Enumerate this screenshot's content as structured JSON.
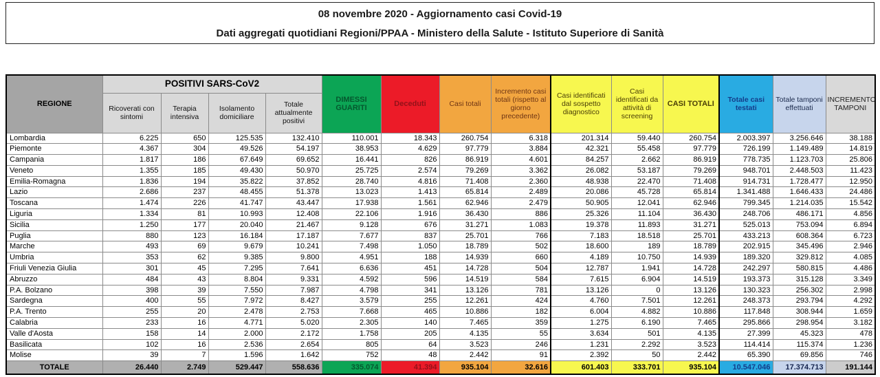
{
  "banner": {
    "line1": "08 novembre 2020 - Aggiornamento casi Covid-19",
    "line2": "Dati aggregati quotidiani Regioni/PPAA - Ministero della Salute - Istituto Superiore di Sanità"
  },
  "colors": {
    "green": "#0ca555",
    "green_text": "#05582e",
    "red": "#ec1b28",
    "red_text": "#931119",
    "orange": "#f2a640",
    "orange_text": "#6d3414",
    "yellow": "#f7f74f",
    "yellow_text": "#4a3e06",
    "cyan": "#29abe2",
    "cyan_text": "#143d8a",
    "lavender": "#c7d5ec",
    "lavender_text": "#14234d",
    "gray_dark": "#a5a5a5",
    "gray_light": "#d9d9d9",
    "total_gray": "#b0b0b0",
    "total_gray_right": "#cccccc"
  },
  "table": {
    "region_header": "REGIONE",
    "group_header": "POSITIVI SARS-CoV2",
    "sub_headers": [
      "Ricoverati con sintomi",
      "Terapia intensiva",
      "Isolamento domiciliare",
      "Totale attualmente positivi"
    ],
    "col_headers": {
      "dimessi": "DIMESSI GUARITI",
      "deceduti": "Deceduti",
      "casi_totali": "Casi totali",
      "incremento_casi": "Incremento casi totali (rispetto al giorno precedente)",
      "sospetto": "Casi identificati dal sospetto diagnostico",
      "screening": "Casi identificati da attività di screening",
      "casi_totali_caps": "CASI TOTALI",
      "testati": "Totale casi testati",
      "tamponi": "Totale tamponi effettuati",
      "incremento_tamponi": "INCREMENTO TAMPONI"
    },
    "rows": [
      {
        "region": "Lombardia",
        "values": [
          "6.225",
          "650",
          "125.535",
          "132.410",
          "110.001",
          "18.343",
          "260.754",
          "6.318",
          "201.314",
          "59.440",
          "260.754",
          "2.003.397",
          "3.256.646",
          "38.188"
        ]
      },
      {
        "region": "Piemonte",
        "values": [
          "4.367",
          "304",
          "49.526",
          "54.197",
          "38.953",
          "4.629",
          "97.779",
          "3.884",
          "42.321",
          "55.458",
          "97.779",
          "726.199",
          "1.149.489",
          "14.819"
        ]
      },
      {
        "region": "Campania",
        "values": [
          "1.817",
          "186",
          "67.649",
          "69.652",
          "16.441",
          "826",
          "86.919",
          "4.601",
          "84.257",
          "2.662",
          "86.919",
          "778.735",
          "1.123.703",
          "25.806"
        ]
      },
      {
        "region": "Veneto",
        "values": [
          "1.355",
          "185",
          "49.430",
          "50.970",
          "25.725",
          "2.574",
          "79.269",
          "3.362",
          "26.082",
          "53.187",
          "79.269",
          "948.701",
          "2.448.503",
          "11.423"
        ]
      },
      {
        "region": "Emilia-Romagna",
        "values": [
          "1.836",
          "194",
          "35.822",
          "37.852",
          "28.740",
          "4.816",
          "71.408",
          "2.360",
          "48.938",
          "22.470",
          "71.408",
          "914.731",
          "1.728.477",
          "12.950"
        ]
      },
      {
        "region": "Lazio",
        "values": [
          "2.686",
          "237",
          "48.455",
          "51.378",
          "13.023",
          "1.413",
          "65.814",
          "2.489",
          "20.086",
          "45.728",
          "65.814",
          "1.341.488",
          "1.646.433",
          "24.486"
        ]
      },
      {
        "region": "Toscana",
        "values": [
          "1.474",
          "226",
          "41.747",
          "43.447",
          "17.938",
          "1.561",
          "62.946",
          "2.479",
          "50.905",
          "12.041",
          "62.946",
          "799.345",
          "1.214.035",
          "15.542"
        ]
      },
      {
        "region": "Liguria",
        "values": [
          "1.334",
          "81",
          "10.993",
          "12.408",
          "22.106",
          "1.916",
          "36.430",
          "886",
          "25.326",
          "11.104",
          "36.430",
          "248.706",
          "486.171",
          "4.856"
        ]
      },
      {
        "region": "Sicilia",
        "values": [
          "1.250",
          "177",
          "20.040",
          "21.467",
          "9.128",
          "676",
          "31.271",
          "1.083",
          "19.378",
          "11.893",
          "31.271",
          "525.013",
          "753.094",
          "6.894"
        ]
      },
      {
        "region": "Puglia",
        "values": [
          "880",
          "123",
          "16.184",
          "17.187",
          "7.677",
          "837",
          "25.701",
          "766",
          "7.183",
          "18.518",
          "25.701",
          "433.213",
          "608.364",
          "6.723"
        ]
      },
      {
        "region": "Marche",
        "values": [
          "493",
          "69",
          "9.679",
          "10.241",
          "7.498",
          "1.050",
          "18.789",
          "502",
          "18.600",
          "189",
          "18.789",
          "202.915",
          "345.496",
          "2.946"
        ]
      },
      {
        "region": "Umbria",
        "values": [
          "353",
          "62",
          "9.385",
          "9.800",
          "4.951",
          "188",
          "14.939",
          "660",
          "4.189",
          "10.750",
          "14.939",
          "189.320",
          "329.812",
          "4.085"
        ]
      },
      {
        "region": "Friuli Venezia Giulia",
        "values": [
          "301",
          "45",
          "7.295",
          "7.641",
          "6.636",
          "451",
          "14.728",
          "504",
          "12.787",
          "1.941",
          "14.728",
          "242.297",
          "580.815",
          "4.486"
        ]
      },
      {
        "region": "Abruzzo",
        "values": [
          "484",
          "43",
          "8.804",
          "9.331",
          "4.592",
          "596",
          "14.519",
          "584",
          "7.615",
          "6.904",
          "14.519",
          "193.373",
          "315.128",
          "3.349"
        ]
      },
      {
        "region": "P.A. Bolzano",
        "values": [
          "398",
          "39",
          "7.550",
          "7.987",
          "4.798",
          "341",
          "13.126",
          "781",
          "13.126",
          "0",
          "13.126",
          "130.323",
          "256.302",
          "2.998"
        ]
      },
      {
        "region": "Sardegna",
        "values": [
          "400",
          "55",
          "7.972",
          "8.427",
          "3.579",
          "255",
          "12.261",
          "424",
          "4.760",
          "7.501",
          "12.261",
          "248.373",
          "293.794",
          "4.292"
        ]
      },
      {
        "region": "P.A. Trento",
        "values": [
          "255",
          "20",
          "2.478",
          "2.753",
          "7.668",
          "465",
          "10.886",
          "182",
          "6.004",
          "4.882",
          "10.886",
          "117.848",
          "308.944",
          "1.659"
        ]
      },
      {
        "region": "Calabria",
        "values": [
          "233",
          "16",
          "4.771",
          "5.020",
          "2.305",
          "140",
          "7.465",
          "359",
          "1.275",
          "6.190",
          "7.465",
          "295.866",
          "298.954",
          "3.182"
        ]
      },
      {
        "region": "Valle d'Aosta",
        "values": [
          "158",
          "14",
          "2.000",
          "2.172",
          "1.758",
          "205",
          "4.135",
          "55",
          "3.634",
          "501",
          "4.135",
          "27.399",
          "45.323",
          "478"
        ]
      },
      {
        "region": "Basilicata",
        "values": [
          "102",
          "16",
          "2.536",
          "2.654",
          "805",
          "64",
          "3.523",
          "246",
          "1.231",
          "2.292",
          "3.523",
          "114.414",
          "115.374",
          "1.236"
        ]
      },
      {
        "region": "Molise",
        "values": [
          "39",
          "7",
          "1.596",
          "1.642",
          "752",
          "48",
          "2.442",
          "91",
          "2.392",
          "50",
          "2.442",
          "65.390",
          "69.856",
          "746"
        ]
      }
    ],
    "total": {
      "label": "TOTALE",
      "values": [
        "26.440",
        "2.749",
        "529.447",
        "558.636",
        "335.074",
        "41.394",
        "935.104",
        "32.616",
        "601.403",
        "333.701",
        "935.104",
        "10.547.046",
        "17.374.713",
        "191.144"
      ]
    }
  }
}
